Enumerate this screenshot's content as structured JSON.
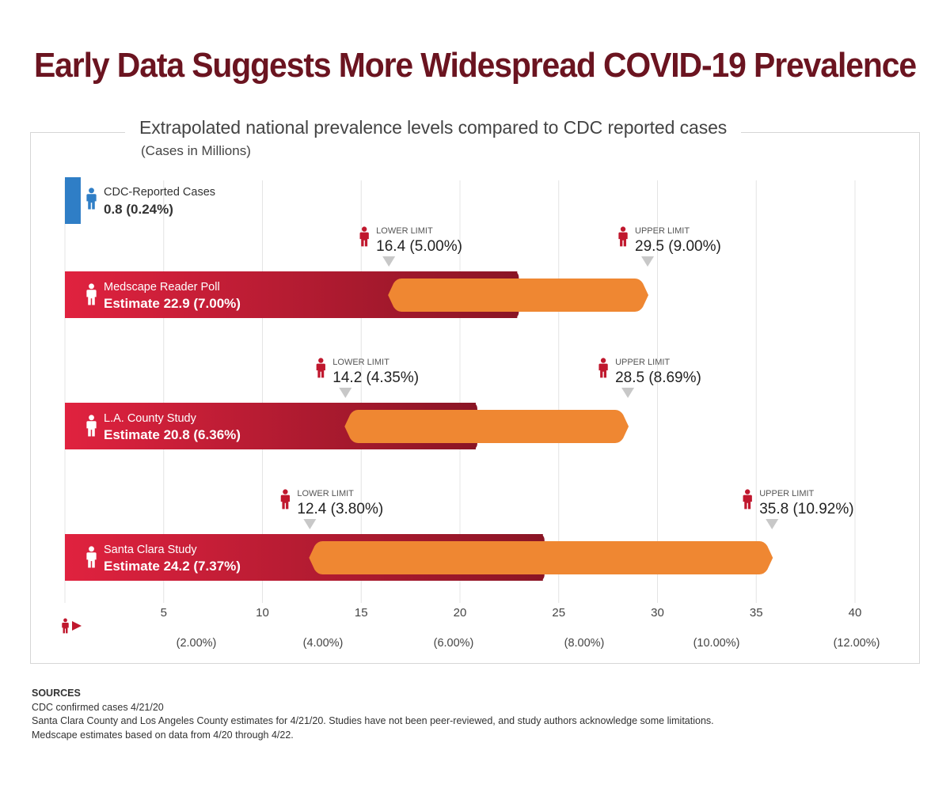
{
  "title": "Early Data Suggests More Widespread COVID-19 Prevalence",
  "colors": {
    "title": "#6b1420",
    "estimate_bar_start": "#e0223f",
    "estimate_bar_end": "#8a1525",
    "range_bar": "#ef8732",
    "cdc_bar": "#2f7ec6",
    "limit_marker": "#c8c8c8",
    "gridline": "#e4e4e4"
  },
  "chart_data": {
    "type": "bar",
    "title": "Extrapolated national prevalence levels compared to CDC reported cases",
    "subtitle": "(Cases in Millions)",
    "xlim": [
      0,
      40
    ],
    "x_ticks": [
      5,
      10,
      15,
      20,
      25,
      30,
      35,
      40
    ],
    "x_tick_labels": [
      "5",
      "10",
      "15",
      "20",
      "25",
      "30",
      "35",
      "40"
    ],
    "secondary_axis_labels": [
      "(2.00%)",
      "(4.00%)",
      "(6.00%)",
      "(8.00%)",
      "(10.00%)",
      "(12.00%)"
    ],
    "secondary_axis_values": [
      2,
      4,
      6,
      8,
      10,
      12
    ],
    "grid": true,
    "cdc": {
      "label": "CDC-Reported Cases",
      "value": 0.8,
      "value_text": "0.8 (0.24%)"
    },
    "lower_limit_label": "LOWER LIMIT",
    "upper_limit_label": "UPPER LIMIT",
    "studies": [
      {
        "name": "Medscape Reader Poll",
        "estimate": 22.9,
        "estimate_text": "Estimate 22.9 (7.00%)",
        "lower": 16.4,
        "lower_text": "16.4 (5.00%)",
        "upper": 29.5,
        "upper_text": "29.5 (9.00%)"
      },
      {
        "name": "L.A. County Study",
        "estimate": 20.8,
        "estimate_text": "Estimate 20.8 (6.36%)",
        "lower": 14.2,
        "lower_text": "14.2 (4.35%)",
        "upper": 28.5,
        "upper_text": "28.5 (8.69%)"
      },
      {
        "name": "Santa Clara Study",
        "estimate": 24.2,
        "estimate_text": "Estimate 24.2 (7.37%)",
        "lower": 12.4,
        "lower_text": "12.4 (3.80%)",
        "upper": 35.8,
        "upper_text": "35.8 (10.92%)"
      }
    ]
  },
  "sources": {
    "heading": "SOURCES",
    "lines": [
      "CDC confirmed cases 4/21/20",
      "Santa Clara County and Los Angeles County estimates for 4/21/20. Studies have not been peer-reviewed, and study authors acknowledge some limitations.",
      "Medscape estimates based on data from 4/20 through 4/22."
    ]
  }
}
